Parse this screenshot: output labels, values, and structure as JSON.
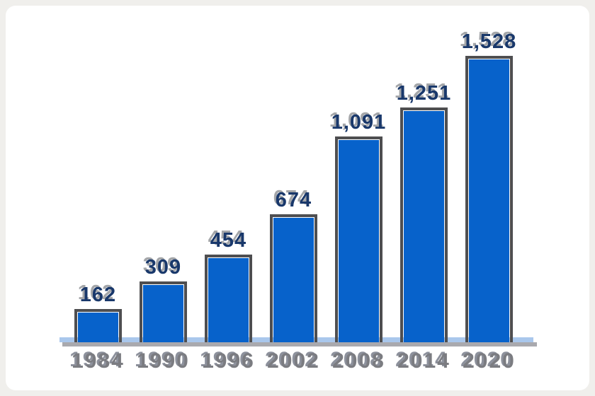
{
  "chart_data": {
    "type": "bar",
    "categories": [
      "1984",
      "1990",
      "1996",
      "2002",
      "2008",
      "2014",
      "2020"
    ],
    "values": [
      162,
      309,
      454,
      674,
      1091,
      1251,
      1528
    ],
    "value_labels": [
      "162",
      "309",
      "454",
      "674",
      "1,091",
      "1,251",
      "1,528"
    ],
    "title": "",
    "xlabel": "",
    "ylabel": "",
    "ylim": [
      0,
      1528
    ],
    "grid": false,
    "legend": false,
    "bar_color": "#0762cb",
    "bar_outline_color": "#4e4e50",
    "value_label_color": "#19386b",
    "category_label_color": "#7b7c81",
    "baseline_gray_color": "#a9a9ae",
    "baseline_blue_color": "#a9c7ec",
    "canvas_background": "#ffffff",
    "frame_color": "#f0efec"
  }
}
